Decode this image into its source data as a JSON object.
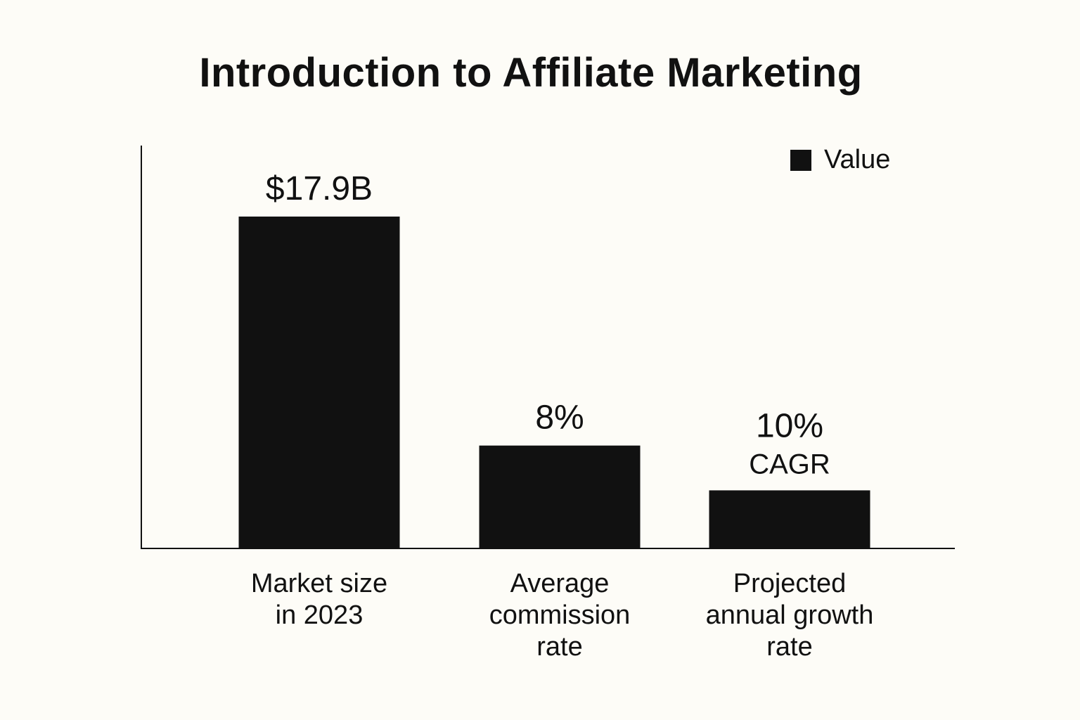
{
  "chart_data": {
    "type": "bar",
    "title": "Introduction to Affiliate Marketing",
    "categories": [
      "Market size in 2023",
      "Average commission rate",
      "Projected annual growth rate"
    ],
    "category_lines": [
      [
        "Market size",
        "in 2023"
      ],
      [
        "Average",
        "commission",
        "rate"
      ],
      [
        "Projected",
        "annual growth",
        "rate"
      ]
    ],
    "series": [
      {
        "name": "Value",
        "values": [
          17.9,
          8,
          10
        ],
        "data_labels": [
          [
            "$17.9B"
          ],
          [
            "8%"
          ],
          [
            "10%",
            "CAGR"
          ]
        ],
        "color": "#111111"
      }
    ],
    "bar_heights_relative": [
      1.0,
      0.31,
      0.175
    ],
    "legend_position": "top-right",
    "grid": false,
    "xlabel": "",
    "ylabel": ""
  }
}
